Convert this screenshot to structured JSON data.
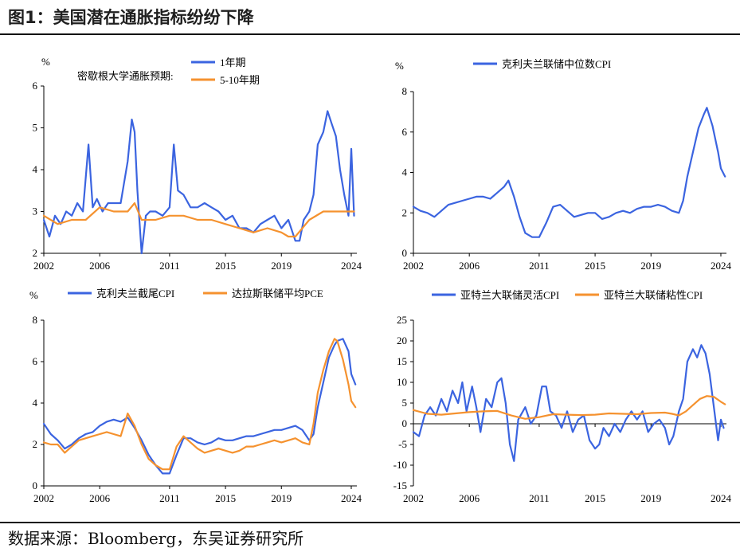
{
  "header": {
    "title": "图1：美国潜在通胀指标纷纷下降"
  },
  "footer": {
    "source": "数据来源：Bloomberg，东吴证券研究所"
  },
  "chart_data": [
    {
      "type": "line",
      "unit": "%",
      "legend_prefix": "密歇根大学通胀预期:",
      "legend_position": "top",
      "x_ticks": [
        2002,
        2006,
        2011,
        2015,
        2019,
        2024
      ],
      "ylim": [
        2,
        6
      ],
      "y_ticks": [
        2,
        3,
        4,
        5,
        6
      ],
      "grid": false,
      "series": [
        {
          "name": "1年期",
          "color": "#3b64e0",
          "x": [
            2002.0,
            2002.4,
            2002.8,
            2003.2,
            2003.6,
            2004.0,
            2004.4,
            2004.8,
            2005.0,
            2005.2,
            2005.5,
            2005.8,
            2006.2,
            2006.6,
            2007.0,
            2007.5,
            2008.0,
            2008.3,
            2008.5,
            2008.7,
            2009.0,
            2009.3,
            2009.6,
            2010.0,
            2010.5,
            2011.0,
            2011.3,
            2011.6,
            2012.0,
            2012.5,
            2013.0,
            2013.5,
            2014.0,
            2014.5,
            2015.0,
            2015.5,
            2016.0,
            2016.5,
            2017.0,
            2017.5,
            2018.0,
            2018.5,
            2019.0,
            2019.5,
            2020.0,
            2020.3,
            2020.6,
            2021.0,
            2021.3,
            2021.6,
            2022.0,
            2022.3,
            2022.6,
            2022.9,
            2023.2,
            2023.5,
            2023.8,
            2024.0,
            2024.2
          ],
          "values": [
            2.8,
            2.4,
            2.9,
            2.7,
            3.0,
            2.9,
            3.2,
            3.0,
            3.8,
            4.6,
            3.1,
            3.3,
            3.0,
            3.2,
            3.2,
            3.2,
            4.2,
            5.2,
            4.9,
            3.5,
            2.0,
            2.9,
            3.0,
            3.0,
            2.9,
            3.1,
            4.6,
            3.5,
            3.4,
            3.1,
            3.1,
            3.2,
            3.1,
            3.0,
            2.8,
            2.9,
            2.6,
            2.6,
            2.5,
            2.7,
            2.8,
            2.9,
            2.6,
            2.8,
            2.3,
            2.3,
            2.8,
            3.0,
            3.4,
            4.6,
            4.9,
            5.4,
            5.1,
            4.8,
            4.0,
            3.4,
            2.9,
            4.5,
            2.9
          ]
        },
        {
          "name": "5-10年期",
          "color": "#f5922f",
          "x": [
            2002.0,
            2003.0,
            2004.0,
            2005.0,
            2006.0,
            2007.0,
            2008.0,
            2008.5,
            2009.0,
            2010.0,
            2011.0,
            2012.0,
            2013.0,
            2014.0,
            2015.0,
            2016.0,
            2017.0,
            2018.0,
            2019.0,
            2019.5,
            2020.0,
            2020.5,
            2021.0,
            2022.0,
            2023.0,
            2024.0,
            2024.2
          ],
          "values": [
            2.9,
            2.7,
            2.8,
            2.8,
            3.1,
            3.0,
            3.0,
            3.2,
            2.8,
            2.8,
            2.9,
            2.9,
            2.8,
            2.8,
            2.7,
            2.6,
            2.5,
            2.6,
            2.5,
            2.4,
            2.4,
            2.6,
            2.8,
            3.0,
            3.0,
            3.0,
            3.0
          ]
        }
      ]
    },
    {
      "type": "line",
      "unit": "%",
      "legend_position": "top",
      "x_ticks": [
        2002,
        2006,
        2011,
        2015,
        2019,
        2024
      ],
      "ylim": [
        0,
        8
      ],
      "y_ticks": [
        0,
        2,
        4,
        6,
        8
      ],
      "grid": false,
      "series": [
        {
          "name": "克利夫兰联储中位数CPI",
          "color": "#3b64e0",
          "x": [
            2002.0,
            2002.5,
            2003.0,
            2003.5,
            2004.0,
            2004.5,
            2005.0,
            2005.5,
            2006.0,
            2006.5,
            2007.0,
            2007.5,
            2008.0,
            2008.5,
            2008.8,
            2009.2,
            2009.6,
            2010.0,
            2010.5,
            2011.0,
            2011.5,
            2012.0,
            2012.5,
            2013.0,
            2013.5,
            2014.0,
            2014.5,
            2015.0,
            2015.5,
            2016.0,
            2016.5,
            2017.0,
            2017.5,
            2018.0,
            2018.5,
            2019.0,
            2019.5,
            2020.0,
            2020.5,
            2021.0,
            2021.3,
            2021.6,
            2022.0,
            2022.4,
            2022.8,
            2023.0,
            2023.4,
            2023.8,
            2024.0,
            2024.3
          ],
          "values": [
            2.3,
            2.1,
            2.0,
            1.8,
            2.1,
            2.4,
            2.5,
            2.6,
            2.7,
            2.8,
            2.8,
            2.7,
            3.0,
            3.3,
            3.6,
            2.8,
            1.8,
            1.0,
            0.8,
            0.8,
            1.5,
            2.3,
            2.4,
            2.1,
            1.8,
            1.9,
            2.0,
            2.0,
            1.7,
            1.8,
            2.0,
            2.1,
            2.0,
            2.2,
            2.3,
            2.3,
            2.4,
            2.3,
            2.1,
            2.0,
            2.6,
            3.8,
            5.0,
            6.2,
            6.9,
            7.2,
            6.3,
            5.0,
            4.2,
            3.8
          ]
        }
      ]
    },
    {
      "type": "line",
      "unit": "%",
      "legend_position": "top",
      "x_ticks": [
        2002,
        2006,
        2011,
        2015,
        2019,
        2024
      ],
      "ylim": [
        0,
        8
      ],
      "y_ticks": [
        0,
        2,
        4,
        6,
        8
      ],
      "grid": false,
      "series": [
        {
          "name": "克利夫兰截尾CPI",
          "color": "#3b64e0",
          "x": [
            2002.0,
            2002.5,
            2003.0,
            2003.5,
            2004.0,
            2004.5,
            2005.0,
            2005.5,
            2006.0,
            2006.5,
            2007.0,
            2007.5,
            2008.0,
            2008.5,
            2009.0,
            2009.5,
            2010.0,
            2010.5,
            2011.0,
            2011.5,
            2012.0,
            2012.5,
            2013.0,
            2013.5,
            2014.0,
            2014.5,
            2015.0,
            2015.5,
            2016.0,
            2016.5,
            2017.0,
            2017.5,
            2018.0,
            2018.5,
            2019.0,
            2019.5,
            2020.0,
            2020.5,
            2021.0,
            2021.3,
            2021.6,
            2022.0,
            2022.4,
            2022.8,
            2023.0,
            2023.4,
            2023.8,
            2024.0,
            2024.3
          ],
          "values": [
            3.0,
            2.5,
            2.2,
            1.8,
            2.0,
            2.3,
            2.5,
            2.6,
            2.9,
            3.1,
            3.2,
            3.1,
            3.3,
            2.8,
            2.2,
            1.5,
            1.0,
            0.6,
            0.6,
            1.5,
            2.3,
            2.3,
            2.1,
            2.0,
            2.1,
            2.3,
            2.2,
            2.2,
            2.3,
            2.4,
            2.4,
            2.5,
            2.6,
            2.7,
            2.7,
            2.8,
            2.9,
            2.7,
            2.2,
            2.5,
            3.8,
            5.0,
            6.2,
            6.8,
            7.0,
            7.1,
            6.5,
            5.4,
            4.9
          ]
        },
        {
          "name": "达拉斯联储平均PCE",
          "color": "#f5922f",
          "x": [
            2002.0,
            2002.5,
            2003.0,
            2003.5,
            2004.0,
            2004.5,
            2005.0,
            2005.5,
            2006.0,
            2006.5,
            2007.0,
            2007.5,
            2008.0,
            2008.5,
            2009.0,
            2009.5,
            2010.0,
            2010.5,
            2011.0,
            2011.5,
            2012.0,
            2012.5,
            2013.0,
            2013.5,
            2014.0,
            2014.5,
            2015.0,
            2015.5,
            2016.0,
            2016.5,
            2017.0,
            2017.5,
            2018.0,
            2018.5,
            2019.0,
            2019.5,
            2020.0,
            2020.5,
            2021.0,
            2021.3,
            2021.6,
            2022.0,
            2022.4,
            2022.8,
            2023.0,
            2023.4,
            2023.8,
            2024.0,
            2024.3
          ],
          "values": [
            2.1,
            2.0,
            2.0,
            1.6,
            1.9,
            2.2,
            2.3,
            2.4,
            2.5,
            2.6,
            2.5,
            2.4,
            3.5,
            2.9,
            2.0,
            1.3,
            1.0,
            0.8,
            0.8,
            1.9,
            2.4,
            2.1,
            1.8,
            1.6,
            1.7,
            1.8,
            1.7,
            1.6,
            1.7,
            1.9,
            1.9,
            2.0,
            2.1,
            2.2,
            2.1,
            2.2,
            2.3,
            2.1,
            2.0,
            3.0,
            4.5,
            5.6,
            6.5,
            7.1,
            7.0,
            6.1,
            4.9,
            4.1,
            3.8
          ]
        }
      ]
    },
    {
      "type": "line",
      "legend_position": "top",
      "x_ticks": [
        2002,
        2006,
        2011,
        2015,
        2019,
        2024
      ],
      "ylim": [
        -15,
        25
      ],
      "y_ticks": [
        -15,
        -10,
        -5,
        0,
        5,
        10,
        15,
        20,
        25
      ],
      "grid": false,
      "series": [
        {
          "name": "亚特兰大联储灵活CPI",
          "color": "#3b64e0",
          "x": [
            2002.0,
            2002.4,
            2002.8,
            2003.2,
            2003.6,
            2004.0,
            2004.4,
            2004.8,
            2005.2,
            2005.5,
            2005.8,
            2006.2,
            2006.5,
            2006.8,
            2007.2,
            2007.6,
            2008.0,
            2008.3,
            2008.6,
            2008.9,
            2009.2,
            2009.5,
            2010.0,
            2010.4,
            2010.8,
            2011.2,
            2011.5,
            2011.8,
            2012.2,
            2012.6,
            2013.0,
            2013.4,
            2013.8,
            2014.2,
            2014.6,
            2015.0,
            2015.3,
            2015.6,
            2016.0,
            2016.4,
            2016.8,
            2017.2,
            2017.6,
            2018.0,
            2018.4,
            2018.8,
            2019.2,
            2019.6,
            2020.0,
            2020.3,
            2020.6,
            2021.0,
            2021.3,
            2021.6,
            2022.0,
            2022.3,
            2022.6,
            2022.9,
            2023.2,
            2023.5,
            2023.8,
            2024.0,
            2024.2
          ],
          "values": [
            -2.0,
            -3.0,
            2.0,
            4.0,
            2.0,
            6.0,
            3.0,
            8.0,
            5.0,
            10.0,
            3.0,
            9.0,
            4.0,
            -2.0,
            6.0,
            4.0,
            10.0,
            11.0,
            5.0,
            -5.0,
            -9.0,
            1.0,
            4.0,
            0.0,
            2.0,
            9.0,
            9.0,
            3.0,
            2.0,
            -1.0,
            3.0,
            -2.0,
            1.0,
            2.0,
            -4.0,
            -6.0,
            -5.0,
            -1.0,
            -3.0,
            0.0,
            -2.0,
            1.0,
            3.0,
            1.0,
            3.0,
            -2.0,
            0.0,
            1.0,
            -1.0,
            -5.0,
            -3.0,
            3.0,
            6.0,
            15.0,
            18.0,
            16.0,
            19.0,
            17.0,
            12.0,
            4.0,
            -4.0,
            1.0,
            -1.0
          ]
        },
        {
          "name": "亚特兰大联储粘性CPI",
          "color": "#f5922f",
          "x": [
            2002.0,
            2003.0,
            2004.0,
            2005.0,
            2006.0,
            2007.0,
            2008.0,
            2009.0,
            2010.0,
            2011.0,
            2012.0,
            2013.0,
            2014.0,
            2015.0,
            2016.0,
            2017.0,
            2018.0,
            2019.0,
            2020.0,
            2020.5,
            2021.0,
            2021.5,
            2022.0,
            2022.5,
            2023.0,
            2023.5,
            2024.0,
            2024.3
          ],
          "values": [
            3.3,
            2.4,
            2.2,
            2.5,
            2.8,
            3.0,
            3.1,
            2.0,
            1.2,
            1.6,
            2.3,
            2.2,
            2.1,
            2.2,
            2.5,
            2.4,
            2.3,
            2.6,
            2.7,
            2.4,
            2.0,
            3.0,
            4.5,
            6.0,
            6.7,
            6.5,
            5.3,
            4.7
          ]
        }
      ]
    }
  ]
}
